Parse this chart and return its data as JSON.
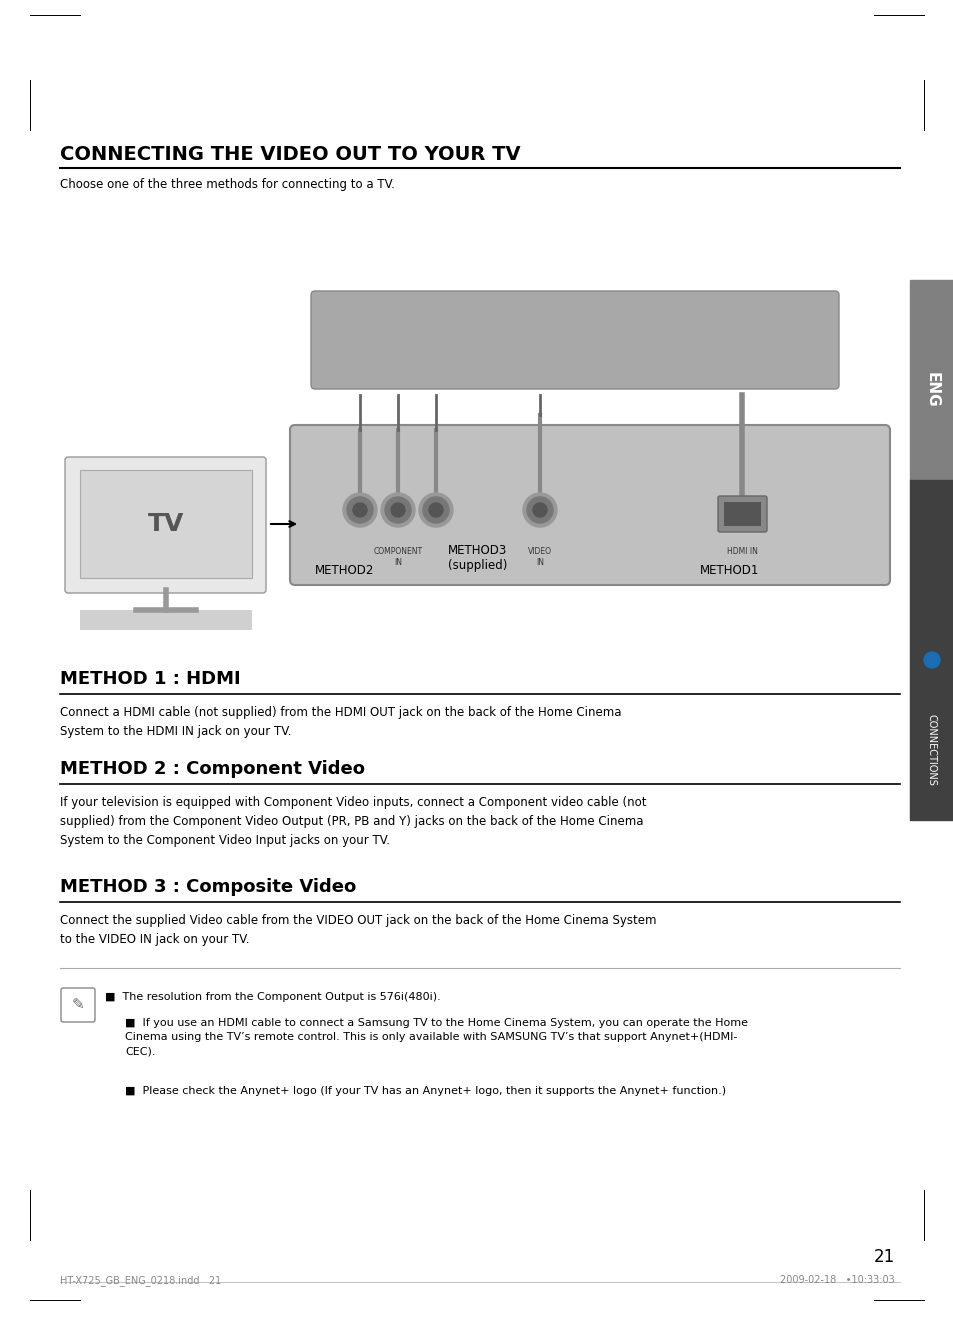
{
  "title": "CONNECTING THE VIDEO OUT TO YOUR TV",
  "subtitle": "Choose one of the three methods for connecting to a TV.",
  "bg_color": "#ffffff",
  "sidebar_color": "#808080",
  "sidebar_text": "ENG",
  "sidebar2_color": "#606060",
  "section1_title": "METHOD 1 : HDMI",
  "section1_body": "Connect a HDMI cable (not supplied) from the HDMI OUT jack on the back of the Home Cinema\nSystem to the HDMI IN jack on your TV.",
  "section2_title": "METHOD 2 : Component Video",
  "section2_body": "If your television is equipped with Component Video inputs, connect a Component video cable (not\nsupplied) from the Component Video Output (PR, PB and Y) jacks on the back of the Home Cinema\nSystem to the Component Video Input jacks on your TV.",
  "section3_title": "METHOD 3 : Composite Video",
  "section3_body": "Connect the supplied Video cable from the VIDEO OUT jack on the back of the Home Cinema System\nto the VIDEO IN jack on your TV.",
  "note1": "The resolution from the Component Output is 576i(480i).",
  "note2": "If you use an HDMI cable to connect a Samsung TV to the Home Cinema System, you can operate the Home\nCinema using the TV’s remote control. This is only available with SAMSUNG TV’s that support Anynet+(HDMI-\nCEC).",
  "note3": "Please check the Anynet+ logo (If your TV has an Anynet+ logo, then it supports the Anynet+ function.)",
  "page_number": "21",
  "footer_left": "HT-X725_GB_ENG_0218.indd   21",
  "footer_right": "2009-02-18   •10:33:03",
  "method2_label": "METHOD2",
  "method3_label": "METHOD3\n(supplied)",
  "method1_label": "METHOD1",
  "connections_text": "CONNECTIONS"
}
